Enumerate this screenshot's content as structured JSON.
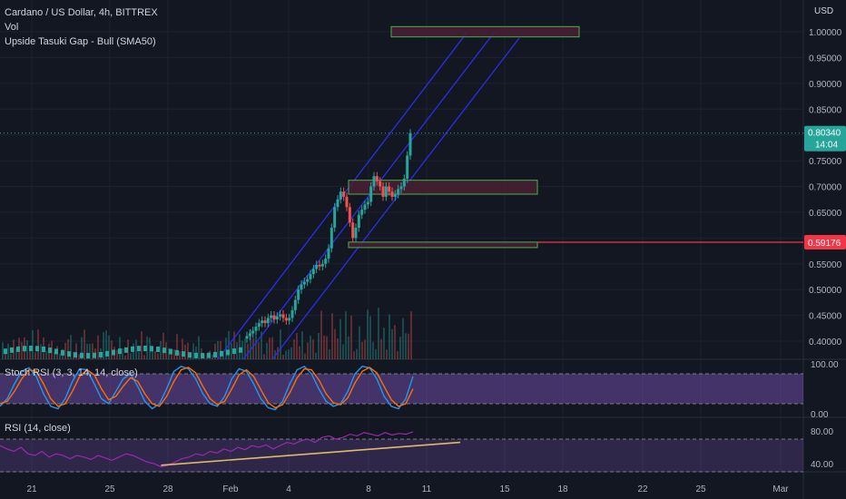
{
  "legend": {
    "title": "Cardano / US Dollar, 4h, BITTREX",
    "vol": "Vol",
    "pattern": "Upside Tasuki Gap - Bull (SMA50)",
    "stoch": "Stoch RSI (3, 3, 14, 14, close)",
    "rsi": "RSI (14, close)"
  },
  "currency": "USD",
  "colors": {
    "background": "#131722",
    "grid": "#1e2230",
    "up": "#26a69a",
    "down": "#ef5350",
    "channel": "#2a2ee8",
    "zone_border": "#4caf50",
    "zone_fill": "#4a1f33",
    "support_line": "#f23645",
    "stoch_k": "#2196f3",
    "stoch_d": "#ff6d00",
    "rsi_line": "#9c27b0",
    "trendline": "#e0b96a"
  },
  "chart_data": [
    {
      "type": "candlestick",
      "title": "Cardano / US Dollar, 4h, BITTREX",
      "x_tick_labels": [
        "21",
        "25",
        "28",
        "Feb",
        "4",
        "8",
        "11",
        "15",
        "18",
        "22",
        "25",
        "Mar"
      ],
      "y_tick_labels": [
        "1.00000",
        "0.95000",
        "0.90000",
        "0.85000",
        "0.80000",
        "0.75000",
        "0.70000",
        "0.65000",
        "0.60000",
        "0.55000",
        "0.50000",
        "0.45000",
        "0.40000"
      ],
      "ylim": [
        0.375,
        1.05
      ],
      "price_label": "0.80340",
      "countdown_label": "14:04",
      "support_label": "0.59176",
      "support_level": 0.59176,
      "zones": [
        {
          "name": "upper-zone",
          "price_low": 0.99,
          "price_high": 1.01
        },
        {
          "name": "middle-zone",
          "price_low": 0.685,
          "price_high": 0.712
        },
        {
          "name": "lower-zone",
          "price_low": 0.585,
          "price_high": 0.592
        }
      ],
      "closes": [
        0.41,
        0.415,
        0.42,
        0.428,
        0.435,
        0.44,
        0.435,
        0.445,
        0.45,
        0.442,
        0.448,
        0.452,
        0.445,
        0.44,
        0.445,
        0.46,
        0.48,
        0.5,
        0.51,
        0.515,
        0.52,
        0.53,
        0.54,
        0.548,
        0.545,
        0.55,
        0.56,
        0.58,
        0.62,
        0.66,
        0.675,
        0.69,
        0.68,
        0.66,
        0.63,
        0.6,
        0.62,
        0.645,
        0.655,
        0.665,
        0.67,
        0.7,
        0.72,
        0.71,
        0.7,
        0.68,
        0.7,
        0.69,
        0.68,
        0.685,
        0.695,
        0.7,
        0.715,
        0.76,
        0.8034
      ],
      "grid": true
    },
    {
      "type": "line",
      "title": "Stoch RSI (3, 3, 14, 14, close)",
      "y_tick_labels": [
        "100.00",
        "0.00"
      ],
      "ylim": [
        0,
        100
      ],
      "band": [
        20,
        80
      ],
      "series": [
        {
          "name": "K",
          "values": [
            15,
            30,
            60,
            85,
            92,
            75,
            40,
            15,
            10,
            30,
            65,
            90,
            88,
            60,
            30,
            20,
            45,
            70,
            80,
            55,
            25,
            10,
            20,
            50,
            85,
            95,
            90,
            70,
            40,
            20,
            15,
            35,
            70,
            90,
            85,
            60,
            30,
            12,
            8,
            25,
            60,
            88,
            95,
            80,
            50,
            25,
            15,
            20,
            45,
            80,
            95,
            92,
            70,
            35,
            15,
            10,
            30,
            75
          ]
        },
        {
          "name": "D",
          "values": [
            20,
            25,
            45,
            70,
            88,
            85,
            60,
            30,
            15,
            20,
            45,
            75,
            88,
            78,
            50,
            28,
            35,
            55,
            72,
            65,
            40,
            20,
            15,
            35,
            65,
            88,
            93,
            82,
            55,
            30,
            18,
            25,
            50,
            78,
            88,
            75,
            48,
            22,
            12,
            18,
            42,
            72,
            90,
            88,
            68,
            40,
            22,
            18,
            32,
            62,
            85,
            93,
            82,
            55,
            28,
            15,
            20,
            50
          ]
        }
      ]
    },
    {
      "type": "line",
      "title": "RSI (14, close)",
      "y_tick_labels": [
        "80.00",
        "40.00"
      ],
      "ylim": [
        30,
        90
      ],
      "band": [
        30,
        70
      ],
      "series": [
        {
          "name": "RSI",
          "values": [
            62,
            58,
            55,
            60,
            52,
            50,
            55,
            48,
            52,
            50,
            46,
            50,
            48,
            45,
            50,
            47,
            44,
            48,
            52,
            50,
            46,
            42,
            40,
            36,
            38,
            42,
            46,
            48,
            52,
            50,
            55,
            53,
            58,
            55,
            60,
            57,
            62,
            60,
            63,
            58,
            62,
            66,
            64,
            68,
            70,
            66,
            72,
            74,
            70,
            72,
            76,
            74,
            78,
            76,
            74,
            78,
            75,
            77,
            76,
            79
          ]
        }
      ],
      "trendline": {
        "start_index": 23,
        "start_value": 38,
        "end_index_beyond": 1.25,
        "end_value": 66
      }
    }
  ]
}
